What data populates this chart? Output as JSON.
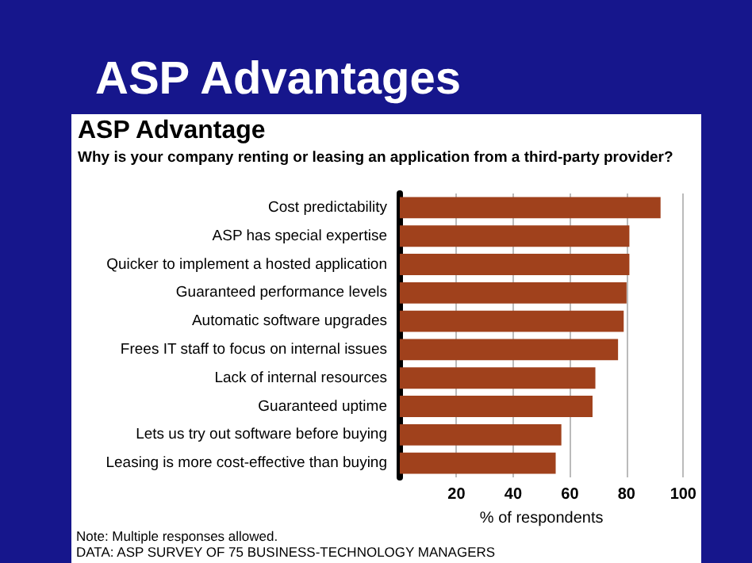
{
  "chart_data": {
    "type": "bar",
    "orientation": "horizontal",
    "title": "ASP Advantages",
    "subtitle": "ASP Advantage",
    "categories": [
      "Cost predictability",
      "ASP has special expertise",
      "Quicker to implement a hosted application",
      "Guaranteed performance levels",
      "Automatic software upgrades",
      "Frees IT staff to focus on internal issues",
      "Lack of internal resources",
      "Guaranteed uptime",
      "Lets us try out software before buying",
      "Leasing is more cost-effective than buying"
    ],
    "values": [
      92,
      81,
      81,
      80,
      79,
      77,
      69,
      68,
      57,
      55
    ],
    "color": "#a0411c",
    "xlim": [
      0,
      100
    ],
    "xticks": [
      20,
      40,
      60,
      80,
      100
    ],
    "xlabel": "% of respondents",
    "grid": "x",
    "annotations": [
      "Why is your company renting or leasing an application from a third-party provider?",
      "Note: Multiple responses allowed.",
      "DATA: ASP SURVEY OF 75 BUSINESS-TECHNOLOGY MANAGERS"
    ]
  }
}
